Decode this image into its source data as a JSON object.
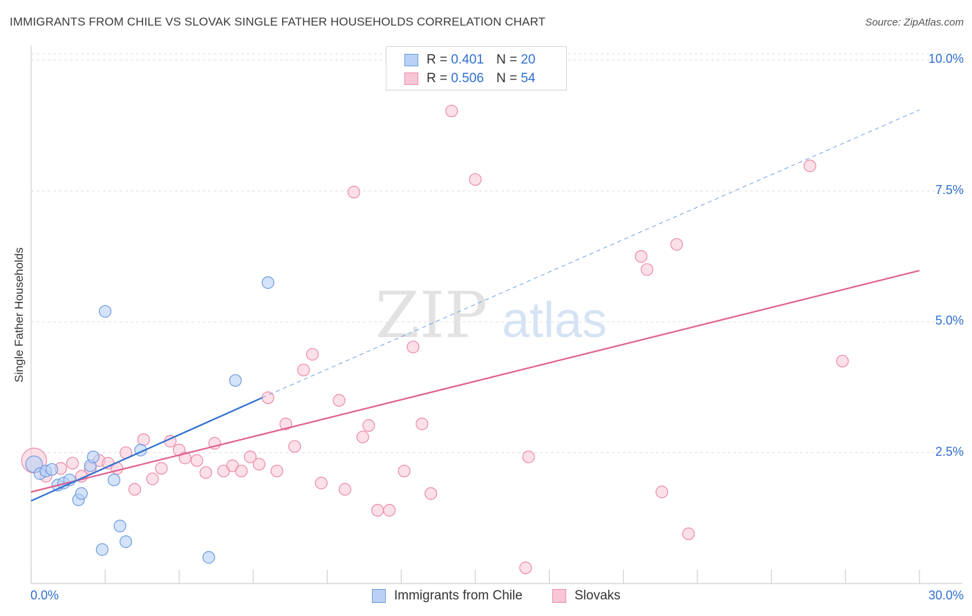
{
  "header": {
    "title": "IMMIGRANTS FROM CHILE VS SLOVAK SINGLE FATHER HOUSEHOLDS CORRELATION CHART",
    "source": "Source: ZipAtlas.com"
  },
  "legend": {
    "rows": [
      {
        "r_label": "R =",
        "r_value": "0.401",
        "n_label": "N =",
        "n_value": "20"
      },
      {
        "r_label": "R =",
        "r_value": "0.506",
        "n_label": "N =",
        "n_value": "54"
      }
    ]
  },
  "watermark": {
    "zip": "ZIP",
    "atlas": "atlas"
  },
  "chart_data": {
    "type": "scatter",
    "title": "IMMIGRANTS FROM CHILE VS SLOVAK SINGLE FATHER HOUSEHOLDS CORRELATION CHART",
    "xlabel": "",
    "ylabel": "Single Father Households",
    "xlim": [
      0,
      30
    ],
    "ylim": [
      0,
      10.2
    ],
    "x_tick_labels": [
      "0.0%",
      "30.0%"
    ],
    "y_ticks": [
      2.5,
      5.0,
      7.5,
      10.0
    ],
    "y_tick_labels": [
      "2.5%",
      "5.0%",
      "7.5%",
      "10.0%"
    ],
    "grid": true,
    "colors": {
      "chile_fill": "#b8d1f5",
      "chile_stroke": "#6d9be0",
      "chile_line": "#2f6fd0",
      "slovak_fill": "#f9c6d6",
      "slovak_stroke": "#e98aa8",
      "slovak_line": "#e0608f",
      "accent_text": "#2f6fd0"
    },
    "series": [
      {
        "name": "Immigrants from Chile",
        "r": 0.401,
        "n": 20,
        "trend": {
          "x0": 0,
          "y0": 1.58,
          "x1": 7.8,
          "y1": 3.55,
          "dash_x1": 30.0,
          "dash_y1": 9.05
        },
        "points": [
          [
            0.1,
            2.28
          ],
          [
            0.3,
            2.1
          ],
          [
            0.5,
            2.15
          ],
          [
            0.7,
            2.18
          ],
          [
            0.9,
            1.88
          ],
          [
            1.1,
            1.92
          ],
          [
            1.3,
            1.98
          ],
          [
            1.6,
            1.6
          ],
          [
            1.7,
            1.72
          ],
          [
            2.0,
            2.25
          ],
          [
            2.1,
            2.42
          ],
          [
            2.4,
            0.65
          ],
          [
            2.5,
            5.2
          ],
          [
            2.8,
            1.98
          ],
          [
            3.0,
            1.1
          ],
          [
            3.2,
            0.8
          ],
          [
            3.7,
            2.55
          ],
          [
            6.0,
            0.5
          ],
          [
            6.9,
            3.88
          ],
          [
            8.0,
            5.75
          ]
        ]
      },
      {
        "name": "Slovaks",
        "r": 0.506,
        "n": 54,
        "trend": {
          "x0": 0,
          "y0": 1.75,
          "x1": 30.0,
          "y1": 5.98
        },
        "points": [
          [
            0.1,
            2.35
          ],
          [
            0.5,
            2.05
          ],
          [
            1.0,
            2.2
          ],
          [
            1.4,
            2.3
          ],
          [
            1.7,
            2.05
          ],
          [
            2.0,
            2.2
          ],
          [
            2.3,
            2.35
          ],
          [
            2.6,
            2.3
          ],
          [
            2.9,
            2.2
          ],
          [
            3.2,
            2.5
          ],
          [
            3.5,
            1.8
          ],
          [
            3.8,
            2.75
          ],
          [
            4.1,
            2.0
          ],
          [
            4.4,
            2.2
          ],
          [
            4.7,
            2.72
          ],
          [
            5.0,
            2.55
          ],
          [
            5.2,
            2.4
          ],
          [
            5.6,
            2.35
          ],
          [
            5.9,
            2.12
          ],
          [
            6.2,
            2.68
          ],
          [
            6.5,
            2.15
          ],
          [
            6.8,
            2.25
          ],
          [
            7.1,
            2.15
          ],
          [
            7.4,
            2.42
          ],
          [
            7.7,
            2.28
          ],
          [
            8.0,
            3.55
          ],
          [
            8.3,
            2.15
          ],
          [
            8.6,
            3.05
          ],
          [
            8.9,
            2.62
          ],
          [
            9.2,
            4.08
          ],
          [
            9.5,
            4.38
          ],
          [
            9.8,
            1.92
          ],
          [
            10.4,
            3.5
          ],
          [
            10.6,
            1.8
          ],
          [
            10.9,
            7.48
          ],
          [
            11.2,
            2.8
          ],
          [
            11.4,
            3.02
          ],
          [
            11.7,
            1.4
          ],
          [
            12.1,
            1.4
          ],
          [
            12.6,
            2.15
          ],
          [
            12.9,
            4.52
          ],
          [
            13.2,
            3.05
          ],
          [
            13.5,
            1.72
          ],
          [
            14.2,
            9.03
          ],
          [
            15.0,
            7.72
          ],
          [
            16.7,
            0.3
          ],
          [
            16.8,
            2.42
          ],
          [
            20.6,
            6.25
          ],
          [
            20.8,
            6.0
          ],
          [
            21.3,
            1.75
          ],
          [
            21.8,
            6.48
          ],
          [
            22.2,
            0.95
          ],
          [
            26.3,
            7.98
          ],
          [
            27.4,
            4.25
          ]
        ]
      }
    ]
  }
}
